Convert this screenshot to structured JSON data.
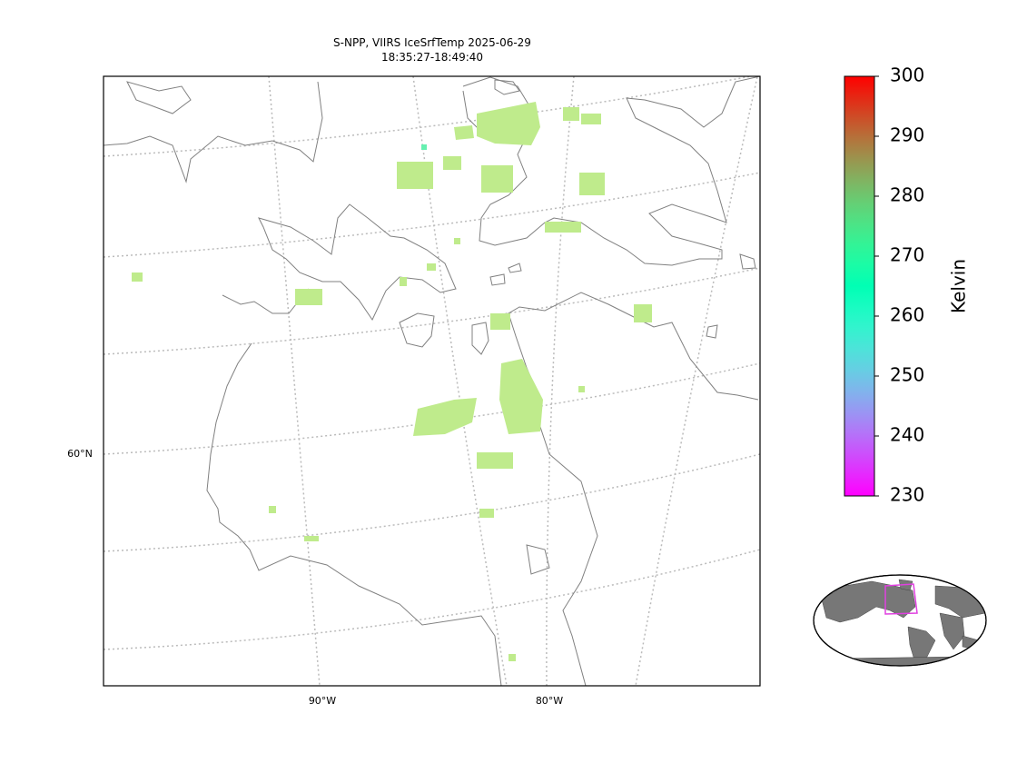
{
  "header": {
    "title": "S-NPP, VIIRS IceSrfTemp 2025-06-29",
    "subtitle": "18:35:27-18:49:40"
  },
  "map": {
    "lat_labels": [
      "60°N"
    ],
    "lon_labels": [
      "90°W",
      "80°W"
    ]
  },
  "colorbar": {
    "label": "Kelvin",
    "lim": [
      230,
      300
    ],
    "ticks": [
      230,
      240,
      250,
      260,
      270,
      280,
      290,
      300
    ],
    "colormap": "rainbow"
  }
}
